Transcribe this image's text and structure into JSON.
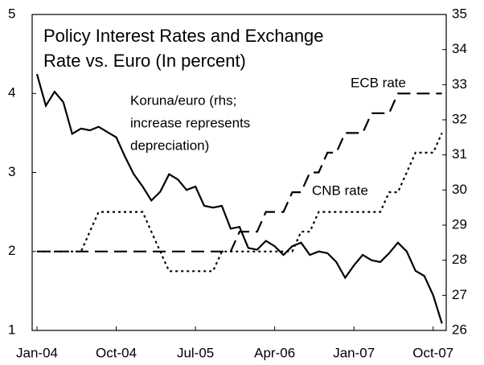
{
  "chart_data": {
    "type": "line",
    "title": [
      "Policy Interest Rates and Exchange",
      "Rate vs. Euro (In percent)"
    ],
    "annotation": [
      "Koruna/euro (rhs;",
      "increase represents",
      "depreciation)"
    ],
    "categories": [
      "Jan-04",
      null,
      null,
      null,
      null,
      null,
      null,
      null,
      null,
      "Oct-04",
      null,
      null,
      null,
      null,
      null,
      null,
      null,
      null,
      "Jul-05",
      null,
      null,
      null,
      null,
      null,
      null,
      null,
      null,
      "Apr-06",
      null,
      null,
      null,
      null,
      null,
      null,
      null,
      null,
      "Jan-07",
      null,
      null,
      null,
      null,
      null,
      null,
      null,
      null,
      "Oct-07",
      null
    ],
    "ylim": [
      1,
      5
    ],
    "yticks": [
      1,
      2,
      3,
      4,
      5
    ],
    "y2lim": [
      26,
      35
    ],
    "y2ticks": [
      26,
      27,
      28,
      29,
      30,
      31,
      32,
      33,
      34,
      35
    ],
    "series": [
      {
        "name": "ECB rate",
        "color": "#000000",
        "style": "dashed",
        "values": [
          2,
          2,
          2,
          2,
          2,
          2,
          2,
          2,
          2,
          2,
          2,
          2,
          2,
          2,
          2,
          2,
          2,
          2,
          2,
          2,
          2,
          2,
          2,
          2.25,
          2.25,
          2.25,
          2.5,
          2.5,
          2.5,
          2.75,
          2.75,
          3,
          3,
          3.25,
          3.25,
          3.5,
          3.5,
          3.5,
          3.75,
          3.75,
          3.75,
          4,
          4,
          4,
          4,
          4,
          4
        ]
      },
      {
        "name": "CNB rate",
        "color": "#000000",
        "style": "dotted",
        "values": [
          2,
          2,
          2,
          2,
          2,
          2,
          2.25,
          2.5,
          2.5,
          2.5,
          2.5,
          2.5,
          2.5,
          2.25,
          2,
          1.75,
          1.75,
          1.75,
          1.75,
          1.75,
          1.75,
          2,
          2,
          2,
          2,
          2,
          2,
          2,
          2,
          2,
          2.25,
          2.25,
          2.5,
          2.5,
          2.5,
          2.5,
          2.5,
          2.5,
          2.5,
          2.5,
          2.75,
          2.75,
          3,
          3.25,
          3.25,
          3.25,
          3.5
        ]
      },
      {
        "color": "#000000",
        "style": "solid",
        "axis": "y2",
        "values": [
          33.3,
          32.4,
          32.8,
          32.5,
          31.6,
          31.75,
          31.7,
          31.8,
          31.65,
          31.5,
          30.95,
          30.45,
          30.1,
          29.7,
          29.95,
          30.45,
          30.3,
          30.0,
          30.1,
          29.55,
          29.5,
          29.55,
          28.9,
          28.95,
          28.35,
          28.3,
          28.55,
          28.4,
          28.15,
          28.4,
          28.5,
          28.15,
          28.25,
          28.2,
          27.95,
          27.5,
          27.85,
          28.15,
          28.0,
          27.95,
          28.2,
          28.5,
          28.25,
          27.7,
          27.55,
          27.0,
          26.2
        ]
      }
    ]
  }
}
